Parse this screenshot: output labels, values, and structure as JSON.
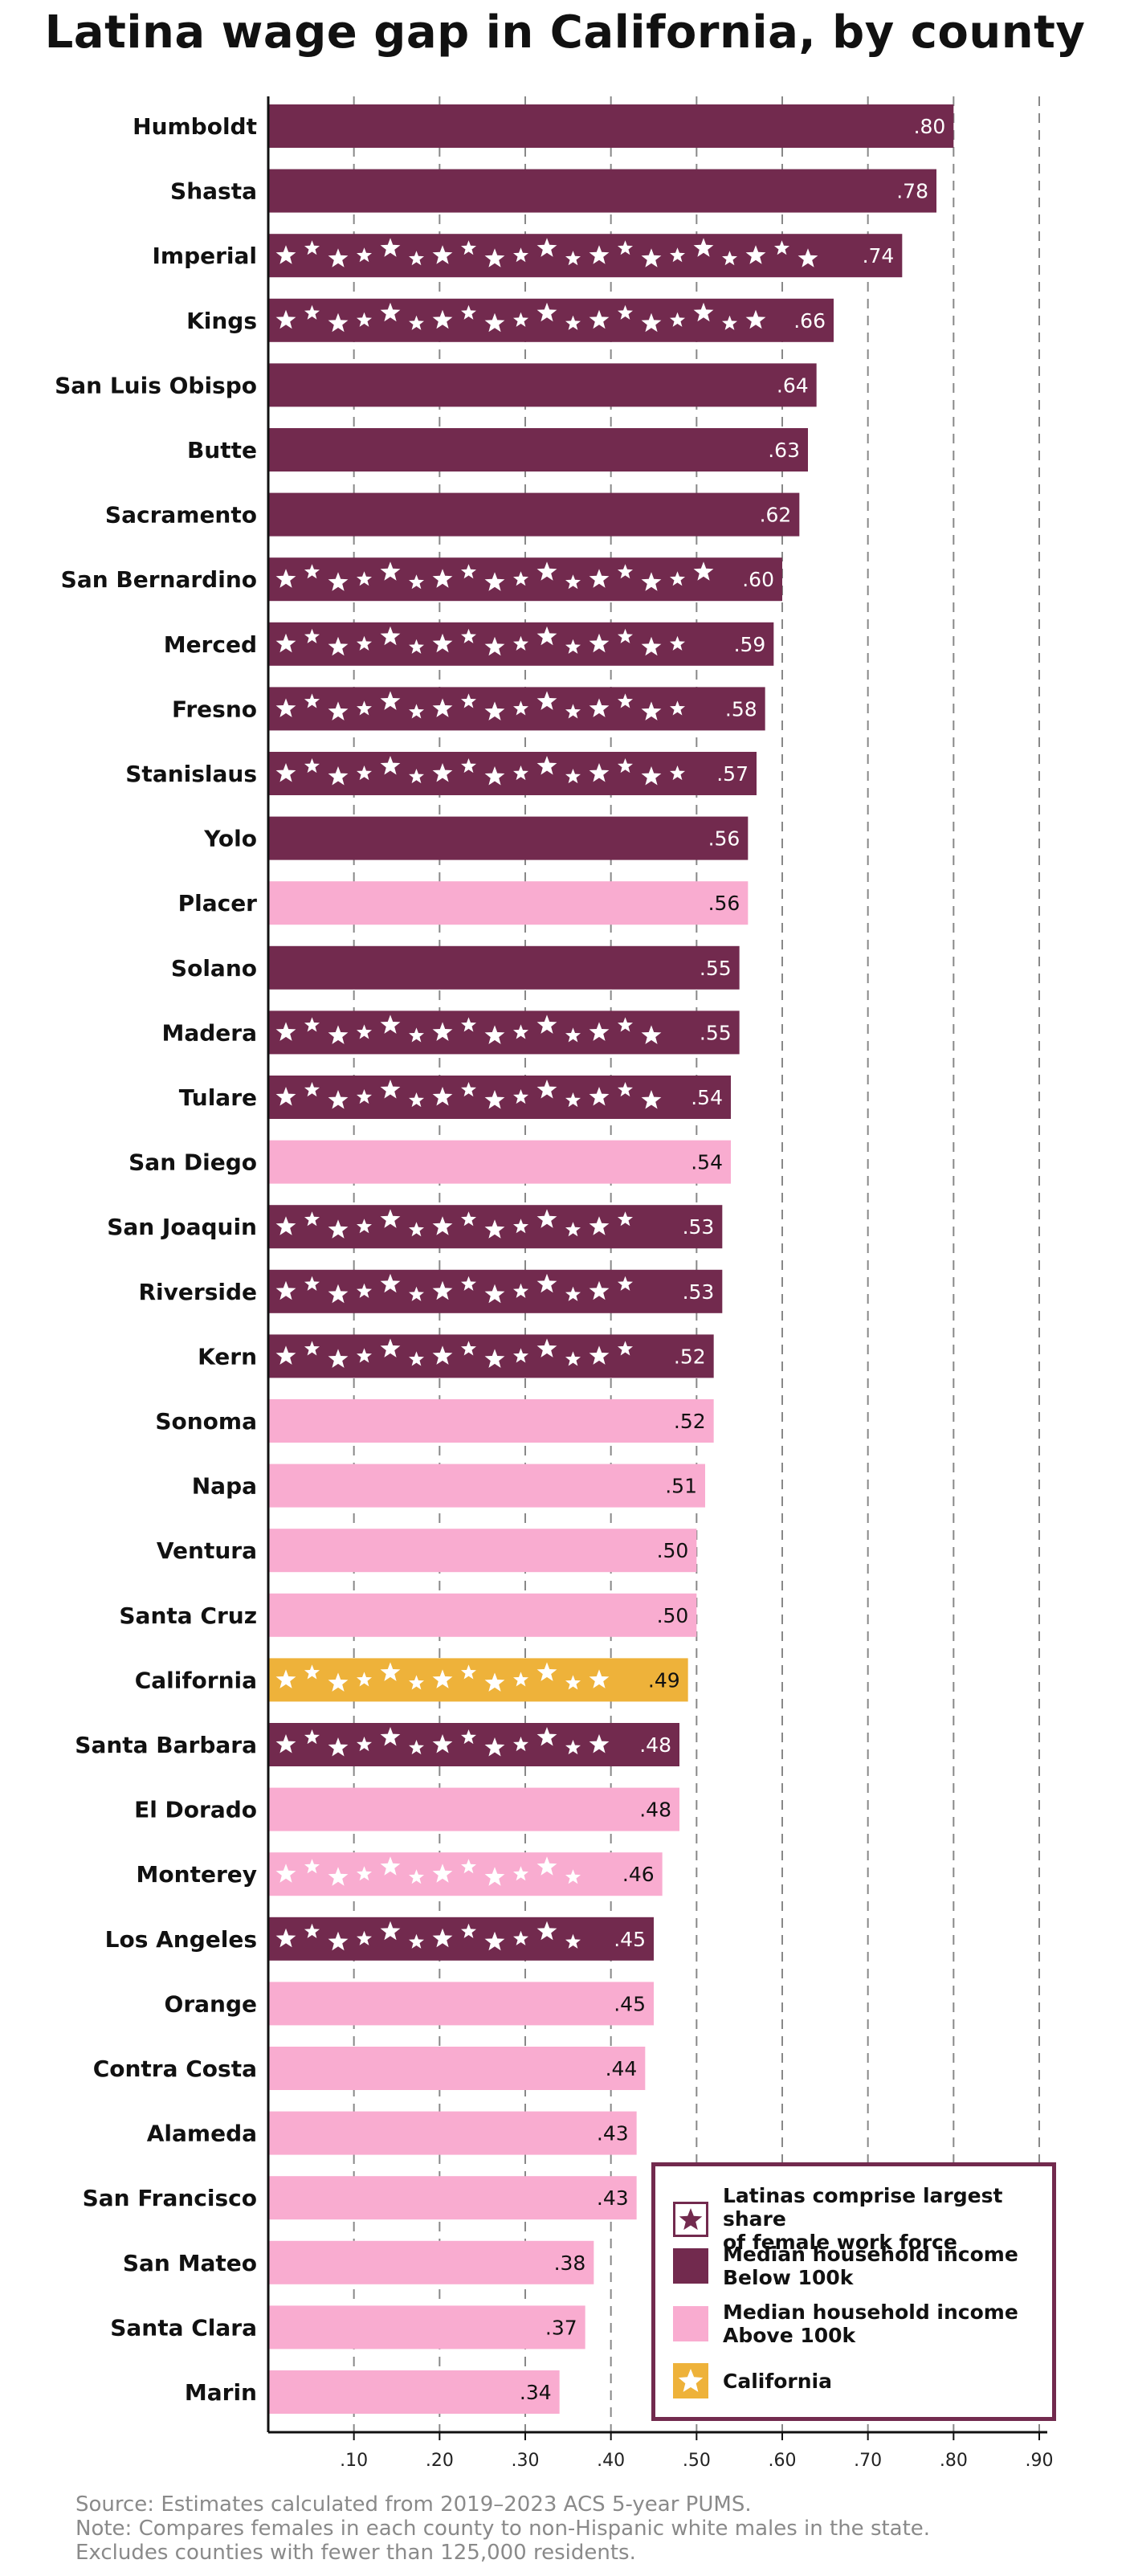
{
  "colors": {
    "dark": "#722a4e",
    "pink": "#f9acd0",
    "gold": "#eeb23a",
    "grid": "#888888",
    "star": "#ffffff"
  },
  "chart_data": {
    "type": "bar",
    "orientation": "horizontal",
    "title": "Latina wage gap in California, by county",
    "xlim": [
      0,
      0.9
    ],
    "xticks": [
      0.1,
      0.2,
      0.3,
      0.4,
      0.5,
      0.6,
      0.7,
      0.8,
      0.9
    ],
    "xtick_labels": [
      ".10",
      ".20",
      ".30",
      ".40",
      ".50",
      ".60",
      ".70",
      ".80",
      ".90"
    ],
    "grid": "vertical dashed",
    "series": [
      {
        "name": "Humboldt",
        "value": 0.8,
        "label": ".80",
        "income": "below",
        "stars": false
      },
      {
        "name": "Shasta",
        "value": 0.78,
        "label": ".78",
        "income": "below",
        "stars": false
      },
      {
        "name": "Imperial",
        "value": 0.74,
        "label": ".74",
        "income": "below",
        "stars": true
      },
      {
        "name": "Kings",
        "value": 0.66,
        "label": ".66",
        "income": "below",
        "stars": true
      },
      {
        "name": "San Luis Obispo",
        "value": 0.64,
        "label": ".64",
        "income": "below",
        "stars": false
      },
      {
        "name": "Butte",
        "value": 0.63,
        "label": ".63",
        "income": "below",
        "stars": false
      },
      {
        "name": "Sacramento",
        "value": 0.62,
        "label": ".62",
        "income": "below",
        "stars": false
      },
      {
        "name": "San Bernardino",
        "value": 0.6,
        "label": ".60",
        "income": "below",
        "stars": true
      },
      {
        "name": "Merced",
        "value": 0.59,
        "label": ".59",
        "income": "below",
        "stars": true
      },
      {
        "name": "Fresno",
        "value": 0.58,
        "label": ".58",
        "income": "below",
        "stars": true
      },
      {
        "name": "Stanislaus",
        "value": 0.57,
        "label": ".57",
        "income": "below",
        "stars": true
      },
      {
        "name": "Yolo",
        "value": 0.56,
        "label": ".56",
        "income": "below",
        "stars": false
      },
      {
        "name": "Placer",
        "value": 0.56,
        "label": ".56",
        "income": "above",
        "stars": false
      },
      {
        "name": "Solano",
        "value": 0.55,
        "label": ".55",
        "income": "below",
        "stars": false
      },
      {
        "name": "Madera",
        "value": 0.55,
        "label": ".55",
        "income": "below",
        "stars": true
      },
      {
        "name": "Tulare",
        "value": 0.54,
        "label": ".54",
        "income": "below",
        "stars": true
      },
      {
        "name": "San Diego",
        "value": 0.54,
        "label": ".54",
        "income": "above",
        "stars": false
      },
      {
        "name": "San Joaquin",
        "value": 0.53,
        "label": ".53",
        "income": "below",
        "stars": true
      },
      {
        "name": "Riverside",
        "value": 0.53,
        "label": ".53",
        "income": "below",
        "stars": true
      },
      {
        "name": "Kern",
        "value": 0.52,
        "label": ".52",
        "income": "below",
        "stars": true
      },
      {
        "name": "Sonoma",
        "value": 0.52,
        "label": ".52",
        "income": "above",
        "stars": false
      },
      {
        "name": "Napa",
        "value": 0.51,
        "label": ".51",
        "income": "above",
        "stars": false
      },
      {
        "name": "Ventura",
        "value": 0.5,
        "label": ".50",
        "income": "above",
        "stars": false
      },
      {
        "name": "Santa Cruz",
        "value": 0.5,
        "label": ".50",
        "income": "above",
        "stars": false
      },
      {
        "name": "California",
        "value": 0.49,
        "label": ".49",
        "income": "state",
        "stars": true
      },
      {
        "name": "Santa Barbara",
        "value": 0.48,
        "label": ".48",
        "income": "below",
        "stars": true
      },
      {
        "name": "El Dorado",
        "value": 0.48,
        "label": ".48",
        "income": "above",
        "stars": false
      },
      {
        "name": "Monterey",
        "value": 0.46,
        "label": ".46",
        "income": "above",
        "stars": true
      },
      {
        "name": "Los Angeles",
        "value": 0.45,
        "label": ".45",
        "income": "below",
        "stars": true
      },
      {
        "name": "Orange",
        "value": 0.45,
        "label": ".45",
        "income": "above",
        "stars": false
      },
      {
        "name": "Contra Costa",
        "value": 0.44,
        "label": ".44",
        "income": "above",
        "stars": false
      },
      {
        "name": "Alameda",
        "value": 0.43,
        "label": ".43",
        "income": "above",
        "stars": false
      },
      {
        "name": "San Francisco",
        "value": 0.43,
        "label": ".43",
        "income": "above",
        "stars": false
      },
      {
        "name": "San Mateo",
        "value": 0.38,
        "label": ".38",
        "income": "above",
        "stars": false
      },
      {
        "name": "Santa Clara",
        "value": 0.37,
        "label": ".37",
        "income": "above",
        "stars": false
      },
      {
        "name": "Marin",
        "value": 0.34,
        "label": ".34",
        "income": "above",
        "stars": false
      }
    ],
    "legend": {
      "placement": "bottom-right",
      "items": [
        {
          "key": "stars",
          "label": "Latinas comprise largest share\nof female work force"
        },
        {
          "key": "below",
          "label": "Median household income\nBelow 100k"
        },
        {
          "key": "above",
          "label": "Median household income\nAbove 100k"
        },
        {
          "key": "state",
          "label": "California"
        }
      ]
    }
  },
  "footer": {
    "source": "Source:  Estimates calculated from 2019–2023 ACS 5-year PUMS.",
    "note": "Note:  Compares females in each county to non-Hispanic white males in the state.",
    "exclusion": "Excludes counties with fewer than 125,000 residents."
  }
}
